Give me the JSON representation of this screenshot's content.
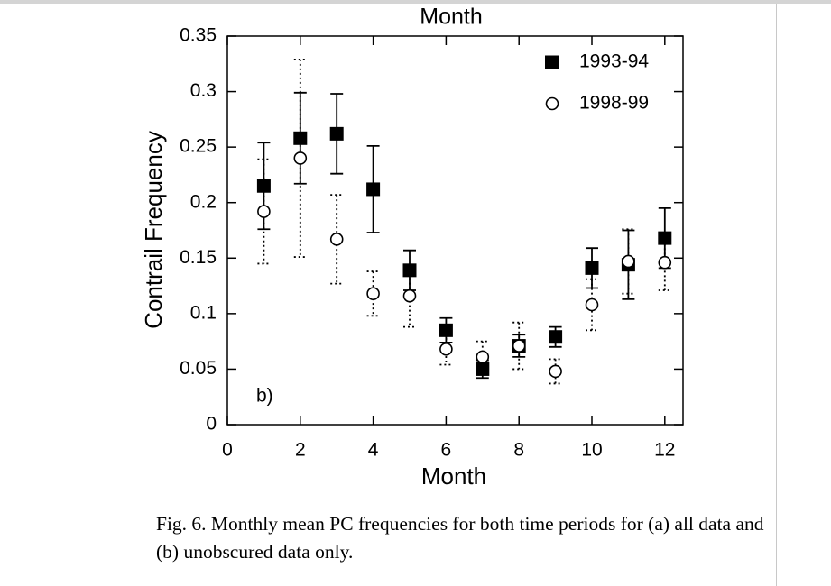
{
  "chart_data": {
    "type": "scatter",
    "top_label": "Month",
    "xlabel": "Month",
    "ylabel": "Contrail Frequency",
    "annotation": "b)",
    "caption": "Fig. 6. Monthly mean PC frequencies for both time periods for (a) all data and (b) unobscured data only.",
    "x": [
      1,
      2,
      3,
      4,
      5,
      6,
      7,
      8,
      9,
      10,
      11,
      12
    ],
    "xlim": [
      0,
      12.5
    ],
    "xticks": [
      0,
      2,
      4,
      6,
      8,
      10,
      12
    ],
    "ylim": [
      0,
      0.35
    ],
    "yticks": [
      0,
      0.05,
      0.1,
      0.15,
      0.2,
      0.25,
      0.3,
      0.35
    ],
    "series": [
      {
        "name": "1993-94",
        "color": "#000000",
        "marker": "square",
        "error_style": "solid",
        "values": [
          0.215,
          0.258,
          0.262,
          0.212,
          0.139,
          0.085,
          0.05,
          0.071,
          0.079,
          0.141,
          0.144,
          0.168
        ],
        "errors": [
          0.039,
          0.041,
          0.036,
          0.039,
          0.018,
          0.011,
          0.008,
          0.01,
          0.009,
          0.018,
          0.031,
          0.027
        ]
      },
      {
        "name": "1998-99",
        "color": "#000000",
        "marker": "circle",
        "error_style": "dotted",
        "values": [
          0.192,
          0.24,
          0.167,
          0.118,
          0.116,
          0.068,
          0.061,
          0.071,
          0.048,
          0.108,
          0.147,
          0.146
        ],
        "errors": [
          0.047,
          0.089,
          0.04,
          0.02,
          0.028,
          0.014,
          0.014,
          0.021,
          0.011,
          0.023,
          0.029,
          0.025
        ]
      }
    ]
  }
}
